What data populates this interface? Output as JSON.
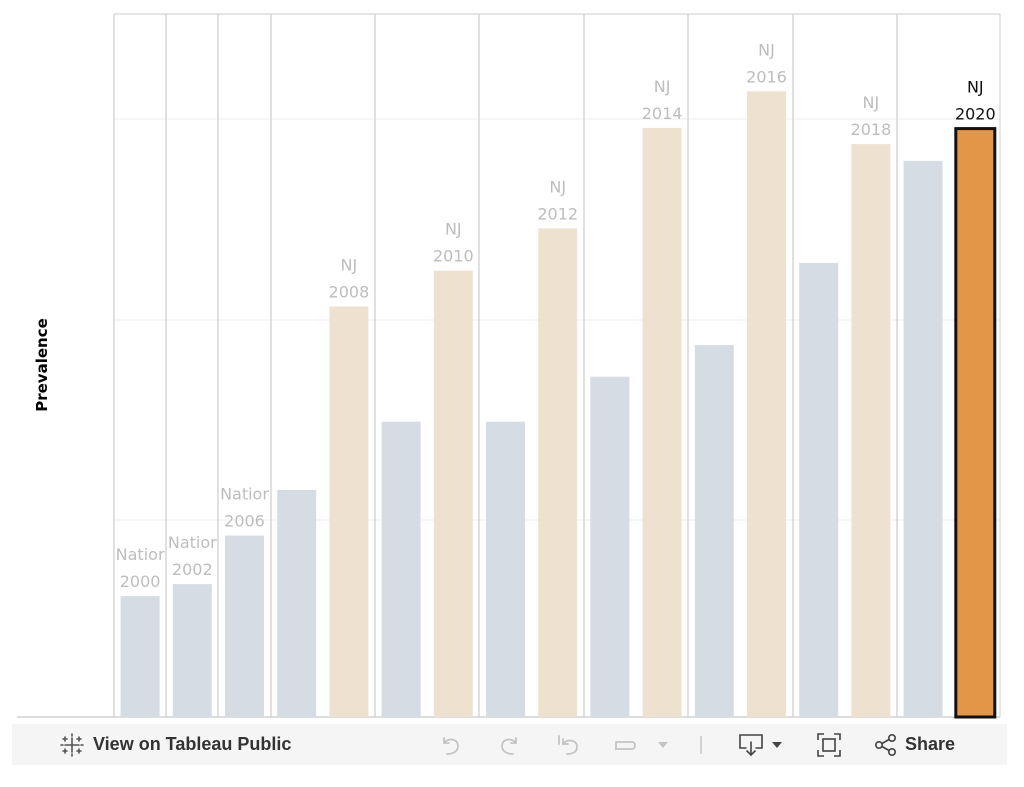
{
  "chart_data": {
    "type": "bar",
    "ylabel": "Prevalence",
    "ylim": [
      0,
      1
    ],
    "gridlines": true,
    "groups": [
      {
        "name": "2000",
        "bars": [
          {
            "series": "National",
            "value": 0.172,
            "label_lines": [
              "Nation",
              "2000"
            ],
            "label_display": [
              "Natior",
              "2000"
            ]
          }
        ]
      },
      {
        "name": "2002",
        "bars": [
          {
            "series": "National",
            "value": 0.189,
            "label_lines": [
              "Nation",
              "2002"
            ],
            "label_display": [
              "Natior",
              "2002"
            ]
          }
        ]
      },
      {
        "name": "2006",
        "bars": [
          {
            "series": "National",
            "value": 0.258,
            "label_lines": [
              "Nation",
              "2006"
            ],
            "label_display": [
              "Natior",
              "2006"
            ]
          }
        ]
      },
      {
        "name": "2008",
        "bars": [
          {
            "series": "National",
            "value": 0.323,
            "label_lines": []
          },
          {
            "series": "NJ",
            "value": 0.584,
            "label_lines": [
              "NJ",
              "2008"
            ]
          }
        ]
      },
      {
        "name": "2010",
        "bars": [
          {
            "series": "National",
            "value": 0.42,
            "label_lines": []
          },
          {
            "series": "NJ",
            "value": 0.635,
            "label_lines": [
              "NJ",
              "2010"
            ]
          }
        ]
      },
      {
        "name": "2012",
        "bars": [
          {
            "series": "National",
            "value": 0.42,
            "label_lines": []
          },
          {
            "series": "NJ",
            "value": 0.695,
            "label_lines": [
              "NJ",
              "2012"
            ]
          }
        ]
      },
      {
        "name": "2014",
        "bars": [
          {
            "series": "National",
            "value": 0.484,
            "label_lines": []
          },
          {
            "series": "NJ",
            "value": 0.838,
            "label_lines": [
              "NJ",
              "2014"
            ]
          }
        ]
      },
      {
        "name": "2016",
        "bars": [
          {
            "series": "National",
            "value": 0.529,
            "label_lines": []
          },
          {
            "series": "NJ",
            "value": 0.89,
            "label_lines": [
              "NJ",
              "2016"
            ]
          }
        ]
      },
      {
        "name": "2018",
        "bars": [
          {
            "series": "National",
            "value": 0.646,
            "label_lines": []
          },
          {
            "series": "NJ",
            "value": 0.815,
            "label_lines": [
              "NJ",
              "2018"
            ]
          }
        ]
      },
      {
        "name": "2020",
        "bars": [
          {
            "series": "National",
            "value": 0.791,
            "label_lines": []
          },
          {
            "series": "NJ",
            "value": 0.837,
            "label_lines": [
              "NJ",
              "2020"
            ],
            "highlighted": true
          }
        ]
      }
    ],
    "colors": {
      "national": "#d5dce4",
      "nj": "#efe1d0",
      "highlight": "#e39548",
      "highlight_border": "#111111",
      "dim_label": "#bdbdbd",
      "active_label": "#111111",
      "grid": "#eeeeee",
      "divider": "#cccccc"
    }
  },
  "toolbar": {
    "view_label": "View on Tableau Public",
    "share_label": "Share",
    "icons": [
      "tableau-logo-icon",
      "undo-icon",
      "redo-icon",
      "revert-icon",
      "pause-icon",
      "dropdown-arrow-icon",
      "download-icon",
      "fullscreen-icon",
      "share-icon"
    ]
  }
}
